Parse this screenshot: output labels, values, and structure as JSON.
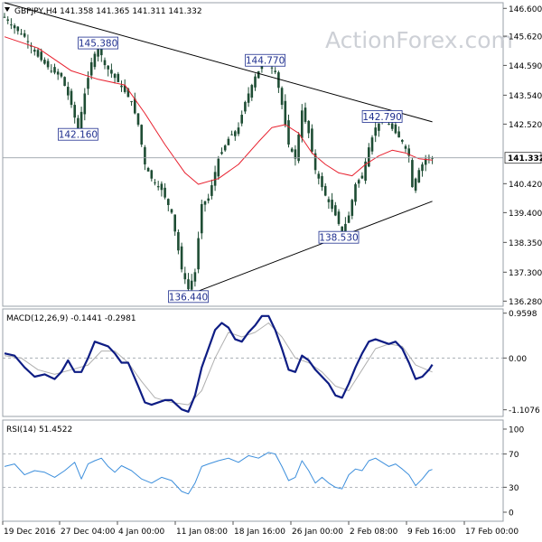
{
  "chart_data": [
    {
      "type": "candlestick",
      "header": {
        "symbol": "GBPJPY,H4",
        "ohlc": "141.358 141.365 141.311 141.332",
        "text": "GBPJPY,H4  141.358 141.365 141.311 141.332"
      },
      "watermark": "ActionForex.com",
      "y_ticks": [
        "146.600",
        "145.620",
        "144.590",
        "143.540",
        "142.520",
        "141.332",
        "140.420",
        "139.400",
        "138.350",
        "137.300",
        "136.280"
      ],
      "ylim": [
        136.1,
        146.8
      ],
      "last_price": "141.332",
      "annotations": [
        {
          "label": "145.380",
          "value": 145.38,
          "bar": 28
        },
        {
          "label": "142.160",
          "value": 142.16,
          "bar": 22
        },
        {
          "label": "144.770",
          "value": 144.77,
          "bar": 78
        },
        {
          "label": "142.790",
          "value": 142.79,
          "bar": 113
        },
        {
          "label": "138.530",
          "value": 138.53,
          "bar": 100
        },
        {
          "label": "136.440",
          "value": 136.44,
          "bar": 55
        }
      ],
      "price_path": [
        [
          0,
          146.3
        ],
        [
          3,
          145.9
        ],
        [
          6,
          145.6
        ],
        [
          10,
          144.9
        ],
        [
          14,
          144.4
        ],
        [
          17,
          144.2
        ],
        [
          20,
          143.2
        ],
        [
          22,
          142.3
        ],
        [
          24,
          143.6
        ],
        [
          26,
          144.7
        ],
        [
          28,
          145.3
        ],
        [
          30,
          144.6
        ],
        [
          34,
          144.0
        ],
        [
          38,
          143.3
        ],
        [
          40,
          142.5
        ],
        [
          42,
          141.1
        ],
        [
          44,
          140.6
        ],
        [
          47,
          140.2
        ],
        [
          50,
          139.4
        ],
        [
          53,
          137.4
        ],
        [
          55,
          136.7
        ],
        [
          57,
          137.3
        ],
        [
          59,
          139.7
        ],
        [
          61,
          139.9
        ],
        [
          64,
          141.3
        ],
        [
          67,
          142.0
        ],
        [
          70,
          142.4
        ],
        [
          72,
          143.3
        ],
        [
          75,
          144.2
        ],
        [
          78,
          144.75
        ],
        [
          81,
          144.4
        ],
        [
          83,
          143.2
        ],
        [
          85,
          141.8
        ],
        [
          87,
          141.3
        ],
        [
          89,
          143.0
        ],
        [
          91,
          142.2
        ],
        [
          93,
          140.9
        ],
        [
          96,
          140.0
        ],
        [
          99,
          139.3
        ],
        [
          101,
          138.7
        ],
        [
          103,
          139.3
        ],
        [
          105,
          140.4
        ],
        [
          107,
          140.7
        ],
        [
          109,
          141.7
        ],
        [
          111,
          142.4
        ],
        [
          113,
          142.7
        ],
        [
          115,
          142.5
        ],
        [
          117,
          142.2
        ],
        [
          119,
          141.9
        ],
        [
          121,
          141.4
        ],
        [
          122,
          140.3
        ],
        [
          124,
          140.9
        ],
        [
          126,
          141.3
        ],
        [
          128,
          141.33
        ]
      ],
      "ma_path": [
        [
          0,
          145.6
        ],
        [
          10,
          145.2
        ],
        [
          20,
          144.4
        ],
        [
          28,
          144.1
        ],
        [
          36,
          143.9
        ],
        [
          42,
          142.9
        ],
        [
          48,
          141.8
        ],
        [
          54,
          140.8
        ],
        [
          58,
          140.4
        ],
        [
          64,
          140.6
        ],
        [
          70,
          141.1
        ],
        [
          76,
          141.9
        ],
        [
          80,
          142.4
        ],
        [
          84,
          142.5
        ],
        [
          88,
          142.2
        ],
        [
          92,
          141.5
        ],
        [
          96,
          141.1
        ],
        [
          100,
          140.8
        ],
        [
          104,
          140.7
        ],
        [
          108,
          141.1
        ],
        [
          112,
          141.4
        ],
        [
          116,
          141.6
        ],
        [
          120,
          141.5
        ],
        [
          124,
          141.3
        ],
        [
          128,
          141.25
        ]
      ],
      "trendlines": [
        {
          "from": [
            0,
            146.8
          ],
          "to": [
            128,
            142.6
          ]
        },
        {
          "from": [
            55,
            136.5
          ],
          "to": [
            128,
            139.8
          ]
        }
      ],
      "reference_line": 141.332
    },
    {
      "type": "line",
      "title": "MACD(12,26,9) -0.1441 -0.2981",
      "y_ticks": [
        "0.9598",
        "0.00",
        "-1.1076"
      ],
      "ylim": [
        -1.25,
        1.05
      ],
      "zero_line": 0,
      "series": [
        {
          "role": "macd",
          "values": [
            [
              0,
              0.1
            ],
            [
              3,
              0.05
            ],
            [
              6,
              -0.2
            ],
            [
              9,
              -0.4
            ],
            [
              12,
              -0.35
            ],
            [
              15,
              -0.45
            ],
            [
              17,
              -0.3
            ],
            [
              19,
              -0.05
            ],
            [
              21,
              -0.3
            ],
            [
              23,
              -0.3
            ],
            [
              25,
              0.0
            ],
            [
              27,
              0.35
            ],
            [
              29,
              0.3
            ],
            [
              31,
              0.25
            ],
            [
              33,
              0.1
            ],
            [
              35,
              -0.1
            ],
            [
              37,
              -0.1
            ],
            [
              40,
              -0.6
            ],
            [
              42,
              -0.95
            ],
            [
              44,
              -1.0
            ],
            [
              48,
              -0.9
            ],
            [
              50,
              -0.9
            ],
            [
              53,
              -1.1
            ],
            [
              55,
              -1.15
            ],
            [
              57,
              -0.8
            ],
            [
              59,
              -0.2
            ],
            [
              61,
              0.2
            ],
            [
              63,
              0.6
            ],
            [
              65,
              0.75
            ],
            [
              67,
              0.65
            ],
            [
              69,
              0.4
            ],
            [
              71,
              0.35
            ],
            [
              73,
              0.55
            ],
            [
              75,
              0.7
            ],
            [
              77,
              0.9
            ],
            [
              79,
              0.9
            ],
            [
              81,
              0.6
            ],
            [
              83,
              0.2
            ],
            [
              85,
              -0.25
            ],
            [
              87,
              -0.3
            ],
            [
              89,
              0.05
            ],
            [
              91,
              -0.05
            ],
            [
              93,
              -0.25
            ],
            [
              95,
              -0.4
            ],
            [
              97,
              -0.55
            ],
            [
              99,
              -0.8
            ],
            [
              101,
              -0.85
            ],
            [
              103,
              -0.55
            ],
            [
              105,
              -0.2
            ],
            [
              107,
              0.1
            ],
            [
              109,
              0.35
            ],
            [
              111,
              0.4
            ],
            [
              113,
              0.35
            ],
            [
              115,
              0.3
            ],
            [
              117,
              0.35
            ],
            [
              119,
              0.2
            ],
            [
              121,
              -0.1
            ],
            [
              123,
              -0.45
            ],
            [
              125,
              -0.4
            ],
            [
              127,
              -0.25
            ],
            [
              128,
              -0.14
            ]
          ]
        },
        {
          "role": "signal",
          "values": [
            [
              0,
              0.05
            ],
            [
              5,
              0.0
            ],
            [
              10,
              -0.25
            ],
            [
              15,
              -0.35
            ],
            [
              20,
              -0.25
            ],
            [
              25,
              -0.15
            ],
            [
              29,
              0.15
            ],
            [
              33,
              0.15
            ],
            [
              37,
              -0.1
            ],
            [
              41,
              -0.5
            ],
            [
              45,
              -0.85
            ],
            [
              50,
              -0.95
            ],
            [
              55,
              -1.0
            ],
            [
              59,
              -0.7
            ],
            [
              63,
              0.0
            ],
            [
              67,
              0.55
            ],
            [
              71,
              0.45
            ],
            [
              75,
              0.55
            ],
            [
              79,
              0.75
            ],
            [
              83,
              0.45
            ],
            [
              87,
              0.0
            ],
            [
              91,
              -0.1
            ],
            [
              95,
              -0.3
            ],
            [
              99,
              -0.6
            ],
            [
              103,
              -0.7
            ],
            [
              107,
              -0.25
            ],
            [
              111,
              0.2
            ],
            [
              115,
              0.3
            ],
            [
              119,
              0.25
            ],
            [
              123,
              -0.15
            ],
            [
              128,
              -0.3
            ]
          ]
        }
      ]
    },
    {
      "type": "line",
      "title": "RSI(14) 51.4522",
      "y_ticks": [
        "100",
        "70",
        "30",
        "0"
      ],
      "ylim": [
        0,
        100
      ],
      "levels": [
        70,
        30
      ],
      "series": [
        {
          "role": "rsi",
          "values": [
            [
              0,
              55
            ],
            [
              3,
              58
            ],
            [
              6,
              45
            ],
            [
              9,
              50
            ],
            [
              12,
              48
            ],
            [
              15,
              42
            ],
            [
              18,
              50
            ],
            [
              21,
              60
            ],
            [
              23,
              40
            ],
            [
              25,
              58
            ],
            [
              27,
              62
            ],
            [
              29,
              65
            ],
            [
              31,
              55
            ],
            [
              33,
              48
            ],
            [
              35,
              56
            ],
            [
              38,
              50
            ],
            [
              41,
              40
            ],
            [
              44,
              35
            ],
            [
              47,
              42
            ],
            [
              50,
              38
            ],
            [
              53,
              25
            ],
            [
              55,
              22
            ],
            [
              57,
              35
            ],
            [
              59,
              55
            ],
            [
              61,
              58
            ],
            [
              64,
              62
            ],
            [
              67,
              65
            ],
            [
              70,
              60
            ],
            [
              73,
              68
            ],
            [
              76,
              65
            ],
            [
              79,
              72
            ],
            [
              81,
              70
            ],
            [
              83,
              55
            ],
            [
              85,
              38
            ],
            [
              87,
              42
            ],
            [
              89,
              62
            ],
            [
              91,
              50
            ],
            [
              93,
              35
            ],
            [
              95,
              42
            ],
            [
              97,
              35
            ],
            [
              99,
              30
            ],
            [
              101,
              28
            ],
            [
              103,
              45
            ],
            [
              105,
              52
            ],
            [
              107,
              50
            ],
            [
              109,
              62
            ],
            [
              111,
              65
            ],
            [
              113,
              60
            ],
            [
              115,
              55
            ],
            [
              117,
              58
            ],
            [
              119,
              52
            ],
            [
              121,
              45
            ],
            [
              123,
              32
            ],
            [
              125,
              40
            ],
            [
              127,
              50
            ],
            [
              128,
              51.45
            ]
          ]
        }
      ]
    }
  ],
  "x_labels": [
    "19 Dec 2016",
    "27 Dec 04:00",
    "4 Jan 00:00",
    "11 Jan 08:00",
    "18 Jan 16:00",
    "26 Jan 00:00",
    "2 Feb 08:00",
    "9 Feb 16:00",
    "17 Feb 00:00"
  ],
  "x_label_bars": [
    0,
    18,
    37,
    55,
    73,
    92,
    110,
    128,
    147
  ],
  "colors": {
    "background": "#ffffff",
    "candle_body": "#1e4d34",
    "candle_wick": "#1e4d34",
    "ma": "#e8202e",
    "trendline": "#000000",
    "annotation_text": "#1f2f8f",
    "macd_line": "#0e1d84",
    "signal_line": "#b0b0b0",
    "rsi_line": "#3d8fdc",
    "level_line": "#9aa0a8",
    "panel_border": "#9aa0a8",
    "watermark": "#cdd0d6"
  }
}
